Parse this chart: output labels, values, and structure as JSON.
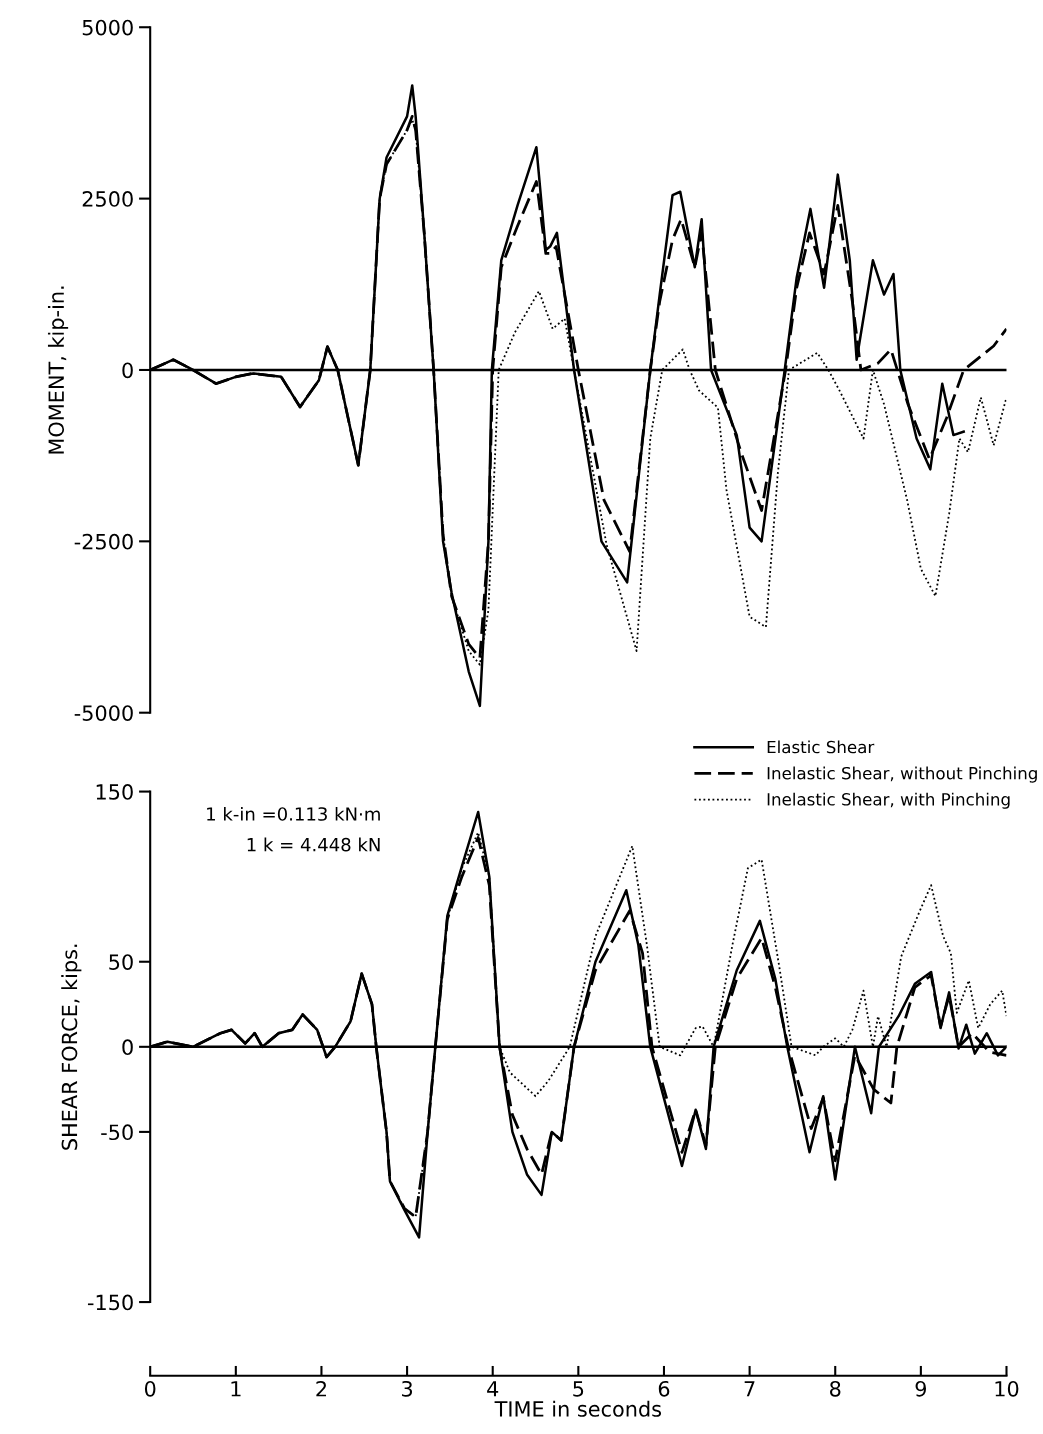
{
  "chart_data": [
    {
      "type": "line",
      "ylabel": "MOMENT, kip-in.",
      "xlim": [
        0,
        10
      ],
      "ylim": [
        -5000,
        5000
      ],
      "yticks": [
        5000,
        2500,
        0,
        -2500,
        -5000
      ],
      "tick_labels": "y",
      "grid": false,
      "legend": "bottom right",
      "ref_lines": [
        {
          "axis": "y",
          "value": 0,
          "color": "#000000",
          "line_style": "solid"
        }
      ],
      "series": [
        {
          "name": "Elastic Shear",
          "color": "#000000",
          "line_style": "solid",
          "x": [
            0,
            0.27,
            0.5,
            0.77,
            1.0,
            1.2,
            1.53,
            1.75,
            1.97,
            2.07,
            2.19,
            2.43,
            2.57,
            2.68,
            2.76,
            3.0,
            3.06,
            3.1,
            3.2,
            3.31,
            3.42,
            3.52,
            3.72,
            3.85,
            3.95,
            3.99,
            4.1,
            4.29,
            4.51,
            4.62,
            4.67,
            4.75,
            4.95,
            5.27,
            5.57,
            5.84,
            5.95,
            6.1,
            6.19,
            6.36,
            6.44,
            6.55,
            6.85,
            7.0,
            7.14,
            7.41,
            7.55,
            7.71,
            7.87,
            8.03,
            8.17,
            8.25,
            8.44,
            8.57,
            8.68,
            8.76,
            8.95,
            9.11,
            9.25,
            9.38,
            9.5
          ],
          "values": [
            0,
            150,
            0,
            -200,
            -100,
            -50,
            -100,
            -540,
            -150,
            340,
            0,
            -1390,
            0,
            2500,
            3100,
            3700,
            4150,
            3700,
            2000,
            0,
            -2500,
            -3250,
            -4400,
            -4900,
            -2500,
            0,
            1600,
            2400,
            3250,
            1750,
            1800,
            2000,
            0,
            -2500,
            -3100,
            0,
            1100,
            2550,
            2600,
            1500,
            2200,
            0,
            -950,
            -2300,
            -2500,
            0,
            1350,
            2350,
            1200,
            2850,
            1600,
            150,
            1600,
            1100,
            1400,
            0,
            -1000,
            -1450,
            -200,
            -950,
            -900
          ]
        },
        {
          "name": "Inelastic Shear, without Pinching",
          "color": "#000000",
          "line_style": "dashed",
          "x": [
            0,
            0.27,
            0.5,
            0.77,
            1.0,
            1.2,
            1.53,
            1.75,
            1.97,
            2.07,
            2.19,
            2.43,
            2.57,
            2.68,
            2.76,
            3.0,
            3.06,
            3.1,
            3.2,
            3.31,
            3.42,
            3.52,
            3.72,
            3.85,
            3.95,
            4.0,
            4.1,
            4.29,
            4.51,
            4.62,
            4.67,
            4.74,
            5.0,
            5.3,
            5.6,
            5.84,
            5.95,
            6.1,
            6.2,
            6.36,
            6.44,
            6.6,
            6.9,
            7.14,
            7.42,
            7.55,
            7.7,
            7.87,
            8.03,
            8.2,
            8.3,
            8.5,
            8.65,
            8.85,
            9.1,
            9.3,
            9.5,
            9.7,
            9.85,
            10.0
          ],
          "values": [
            0,
            150,
            0,
            -200,
            -100,
            -50,
            -100,
            -540,
            -150,
            340,
            0,
            -1390,
            0,
            2500,
            3000,
            3500,
            3700,
            3500,
            2000,
            0,
            -2400,
            -3300,
            -4000,
            -4200,
            -2500,
            0,
            1500,
            2100,
            2750,
            1700,
            1700,
            1800,
            0,
            -1900,
            -2650,
            0,
            1000,
            1900,
            2200,
            1500,
            2000,
            0,
            -1200,
            -2050,
            0,
            1200,
            2000,
            1400,
            2400,
            1000,
            0,
            100,
            300,
            -500,
            -1300,
            -700,
            0,
            200,
            350,
            600
          ]
        },
        {
          "name": "Inelastic Shear, with Pinching",
          "color": "#000000",
          "line_style": "dotted",
          "x": [
            0,
            0.27,
            0.5,
            0.77,
            1.0,
            1.2,
            1.53,
            1.75,
            1.97,
            2.07,
            2.19,
            2.43,
            2.57,
            2.68,
            2.76,
            3.0,
            3.06,
            3.1,
            3.2,
            3.31,
            3.42,
            3.52,
            3.72,
            3.85,
            3.95,
            4.07,
            4.26,
            4.54,
            4.7,
            4.84,
            4.95,
            5.33,
            5.68,
            5.84,
            5.98,
            6.22,
            6.3,
            6.41,
            6.63,
            6.73,
            7.0,
            7.19,
            7.33,
            7.46,
            7.79,
            7.92,
            8.05,
            8.33,
            8.44,
            8.57,
            8.84,
            9.0,
            9.17,
            9.33,
            9.45,
            9.55,
            9.7,
            9.85,
            10.0
          ],
          "values": [
            0,
            150,
            0,
            -200,
            -100,
            -50,
            -100,
            -540,
            -150,
            340,
            0,
            -1390,
            0,
            2500,
            3000,
            3500,
            3650,
            3500,
            2000,
            0,
            -2400,
            -3300,
            -4100,
            -4300,
            -3500,
            0,
            550,
            1150,
            600,
            750,
            0,
            -2550,
            -4100,
            -1000,
            0,
            300,
            0,
            -300,
            -550,
            -1750,
            -3600,
            -3750,
            -1500,
            0,
            250,
            0,
            -300,
            -1000,
            0,
            -500,
            -1900,
            -2900,
            -3300,
            -2100,
            -1000,
            -1200,
            -400,
            -1100,
            -400
          ]
        }
      ]
    },
    {
      "type": "line",
      "ylabel": "SHEAR FORCE, kips.",
      "xlabel": "TIME in seconds",
      "xlim": [
        0,
        10
      ],
      "xticks": [
        0,
        1,
        2,
        3,
        4,
        5,
        6,
        7,
        8,
        9,
        10
      ],
      "ylim": [
        -150,
        150
      ],
      "yticks": [
        150,
        50,
        0,
        -50,
        -150
      ],
      "grid": false,
      "ref_lines": [
        {
          "axis": "y",
          "value": 0,
          "color": "#000000",
          "line_style": "solid"
        }
      ],
      "annotations": [
        "1 k-in =0.113 kN·m",
        "1 k = 4.448 kN"
      ],
      "series": [
        {
          "color": "#000000",
          "line_style": "solid",
          "x": [
            0,
            0.2,
            0.5,
            0.82,
            0.95,
            1.11,
            1.22,
            1.31,
            1.5,
            1.66,
            1.78,
            1.95,
            2.06,
            2.16,
            2.34,
            2.47,
            2.59,
            2.64,
            2.76,
            2.8,
            2.97,
            3.14,
            3.24,
            3.33,
            3.47,
            3.64,
            3.83,
            3.96,
            4.02,
            4.08,
            4.23,
            4.4,
            4.57,
            4.69,
            4.8,
            4.95,
            5.2,
            5.56,
            5.7,
            5.84,
            6.21,
            6.37,
            6.49,
            6.58,
            6.85,
            7.12,
            7.3,
            7.44,
            7.7,
            7.86,
            8.0,
            8.23,
            8.42,
            8.51,
            8.74,
            8.93,
            9.12,
            9.23,
            9.33,
            9.44,
            9.53,
            9.63,
            9.77,
            9.9,
            10.0
          ],
          "values": [
            0,
            3,
            0,
            8,
            10,
            2,
            8,
            0,
            8,
            10,
            19,
            10,
            -6,
            0,
            15,
            43,
            25,
            0,
            -50,
            -79,
            -96,
            -112,
            -50,
            0,
            77,
            106,
            138,
            100,
            50,
            0,
            -50,
            -75,
            -87,
            -50,
            -55,
            0,
            50,
            92,
            60,
            0,
            -70,
            -37,
            -60,
            0,
            45,
            74,
            40,
            0,
            -62,
            -29,
            -78,
            0,
            -39,
            0,
            18,
            37,
            44,
            11,
            32,
            -1,
            13,
            -4,
            8,
            -5,
            0
          ]
        },
        {
          "color": "#000000",
          "line_style": "dashed",
          "x": [
            0,
            0.2,
            0.5,
            0.82,
            0.95,
            1.11,
            1.22,
            1.31,
            1.5,
            1.66,
            1.78,
            1.95,
            2.06,
            2.16,
            2.34,
            2.47,
            2.59,
            2.64,
            2.76,
            2.8,
            2.97,
            3.1,
            3.24,
            3.33,
            3.47,
            3.64,
            3.83,
            3.96,
            4.08,
            4.23,
            4.4,
            4.57,
            4.69,
            4.8,
            4.95,
            5.2,
            5.6,
            5.75,
            5.86,
            6.21,
            6.37,
            6.49,
            6.6,
            6.85,
            7.14,
            7.3,
            7.45,
            7.72,
            7.86,
            8.0,
            8.23,
            8.45,
            8.65,
            8.72,
            8.93,
            9.12,
            9.23,
            9.33,
            9.44,
            9.6,
            9.8,
            10.0
          ],
          "values": [
            0,
            3,
            0,
            8,
            10,
            2,
            8,
            0,
            8,
            10,
            19,
            10,
            -6,
            0,
            15,
            43,
            25,
            0,
            -50,
            -79,
            -95,
            -100,
            -50,
            0,
            75,
            100,
            123,
            95,
            0,
            -40,
            -60,
            -75,
            -50,
            -55,
            0,
            45,
            80,
            55,
            0,
            -62,
            -37,
            -58,
            0,
            40,
            64,
            35,
            0,
            -48,
            -30,
            -67,
            -5,
            -25,
            -33,
            0,
            35,
            42,
            12,
            30,
            0,
            8,
            -3,
            -5
          ]
        },
        {
          "color": "#000000",
          "line_style": "dotted",
          "x": [
            0,
            0.2,
            0.5,
            0.82,
            0.95,
            1.11,
            1.22,
            1.31,
            1.5,
            1.66,
            1.78,
            1.95,
            2.06,
            2.16,
            2.34,
            2.47,
            2.59,
            2.64,
            2.76,
            2.8,
            2.97,
            3.1,
            3.24,
            3.33,
            3.47,
            3.64,
            3.83,
            3.96,
            4.08,
            4.2,
            4.5,
            4.65,
            4.9,
            5.2,
            5.63,
            5.8,
            5.95,
            6.19,
            6.37,
            6.45,
            6.58,
            6.8,
            6.98,
            7.14,
            7.35,
            7.49,
            7.77,
            7.86,
            8.0,
            8.1,
            8.2,
            8.33,
            8.44,
            8.5,
            8.6,
            8.77,
            8.98,
            9.12,
            9.26,
            9.35,
            9.42,
            9.56,
            9.67,
            9.81,
            9.95,
            10.0
          ],
          "values": [
            0,
            3,
            0,
            8,
            10,
            2,
            8,
            0,
            8,
            10,
            19,
            10,
            -6,
            0,
            15,
            43,
            25,
            0,
            -50,
            -79,
            -95,
            -100,
            -50,
            0,
            75,
            105,
            126,
            100,
            0,
            -15,
            -29,
            -20,
            0,
            65,
            118,
            60,
            0,
            -5,
            11,
            12,
            0,
            60,
            105,
            110,
            46,
            0,
            -5,
            0,
            5,
            0,
            10,
            33,
            0,
            18,
            0,
            53,
            79,
            95,
            65,
            55,
            20,
            39,
            11,
            25,
            33,
            18
          ]
        }
      ]
    }
  ]
}
